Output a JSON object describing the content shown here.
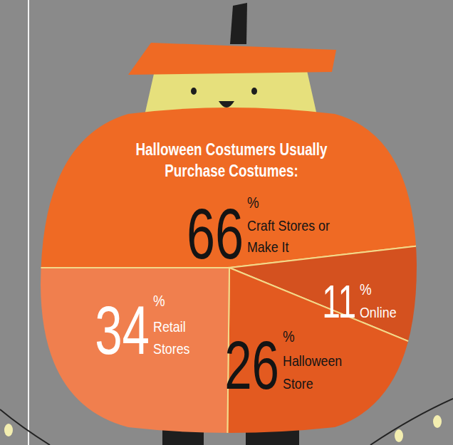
{
  "chart_data": {
    "type": "pie",
    "title": "Halloween Costumers Usually\nPurchase Costumes:",
    "categories": [
      "Craft Stores or\nMake It",
      "Online",
      "Halloween\nStore",
      "Retail\nStores"
    ],
    "values": [
      66,
      11,
      26,
      34
    ],
    "value_labels": [
      "66%",
      "11%",
      "26%",
      "34%"
    ],
    "colors": [
      "#ef6a24",
      "#d4511f",
      "#e35a20",
      "#f07f4e"
    ],
    "data_labels": true
  }
}
